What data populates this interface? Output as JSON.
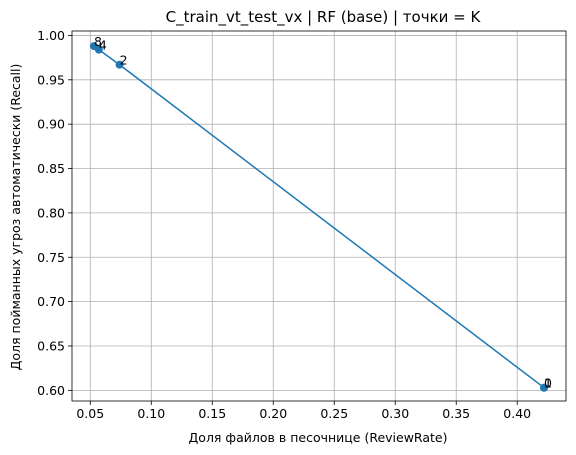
{
  "chart_data": {
    "type": "line",
    "title": "C_train_vt_test_vx | RF (base) | точки = K",
    "xlabel": "Доля файлов в песочнице (ReviewRate)",
    "ylabel": "Доля пойманных угроз автоматически (Recall)",
    "xlim": [
      0.035,
      0.44
    ],
    "ylim": [
      0.588,
      1.005
    ],
    "x_ticks": [
      0.05,
      0.1,
      0.15,
      0.2,
      0.25,
      0.3,
      0.35,
      0.4
    ],
    "x_tick_labels": [
      "0.05",
      "0.10",
      "0.15",
      "0.20",
      "0.25",
      "0.30",
      "0.35",
      "0.40"
    ],
    "y_ticks": [
      0.6,
      0.65,
      0.7,
      0.75,
      0.8,
      0.85,
      0.9,
      0.95,
      1.0
    ],
    "y_tick_labels": [
      "0.60",
      "0.65",
      "0.70",
      "0.75",
      "0.80",
      "0.85",
      "0.90",
      "0.95",
      "1.00"
    ],
    "grid": true,
    "series": [
      {
        "color": "#1f77b4",
        "points": [
          {
            "x": 0.053,
            "y": 0.988,
            "label": "8"
          },
          {
            "x": 0.057,
            "y": 0.984,
            "label": "4"
          },
          {
            "x": 0.074,
            "y": 0.967,
            "label": "2"
          },
          {
            "x": 0.422,
            "y": 0.603,
            "label": "1"
          },
          {
            "x": 0.422,
            "y": 0.603,
            "label": "0"
          }
        ]
      }
    ]
  }
}
